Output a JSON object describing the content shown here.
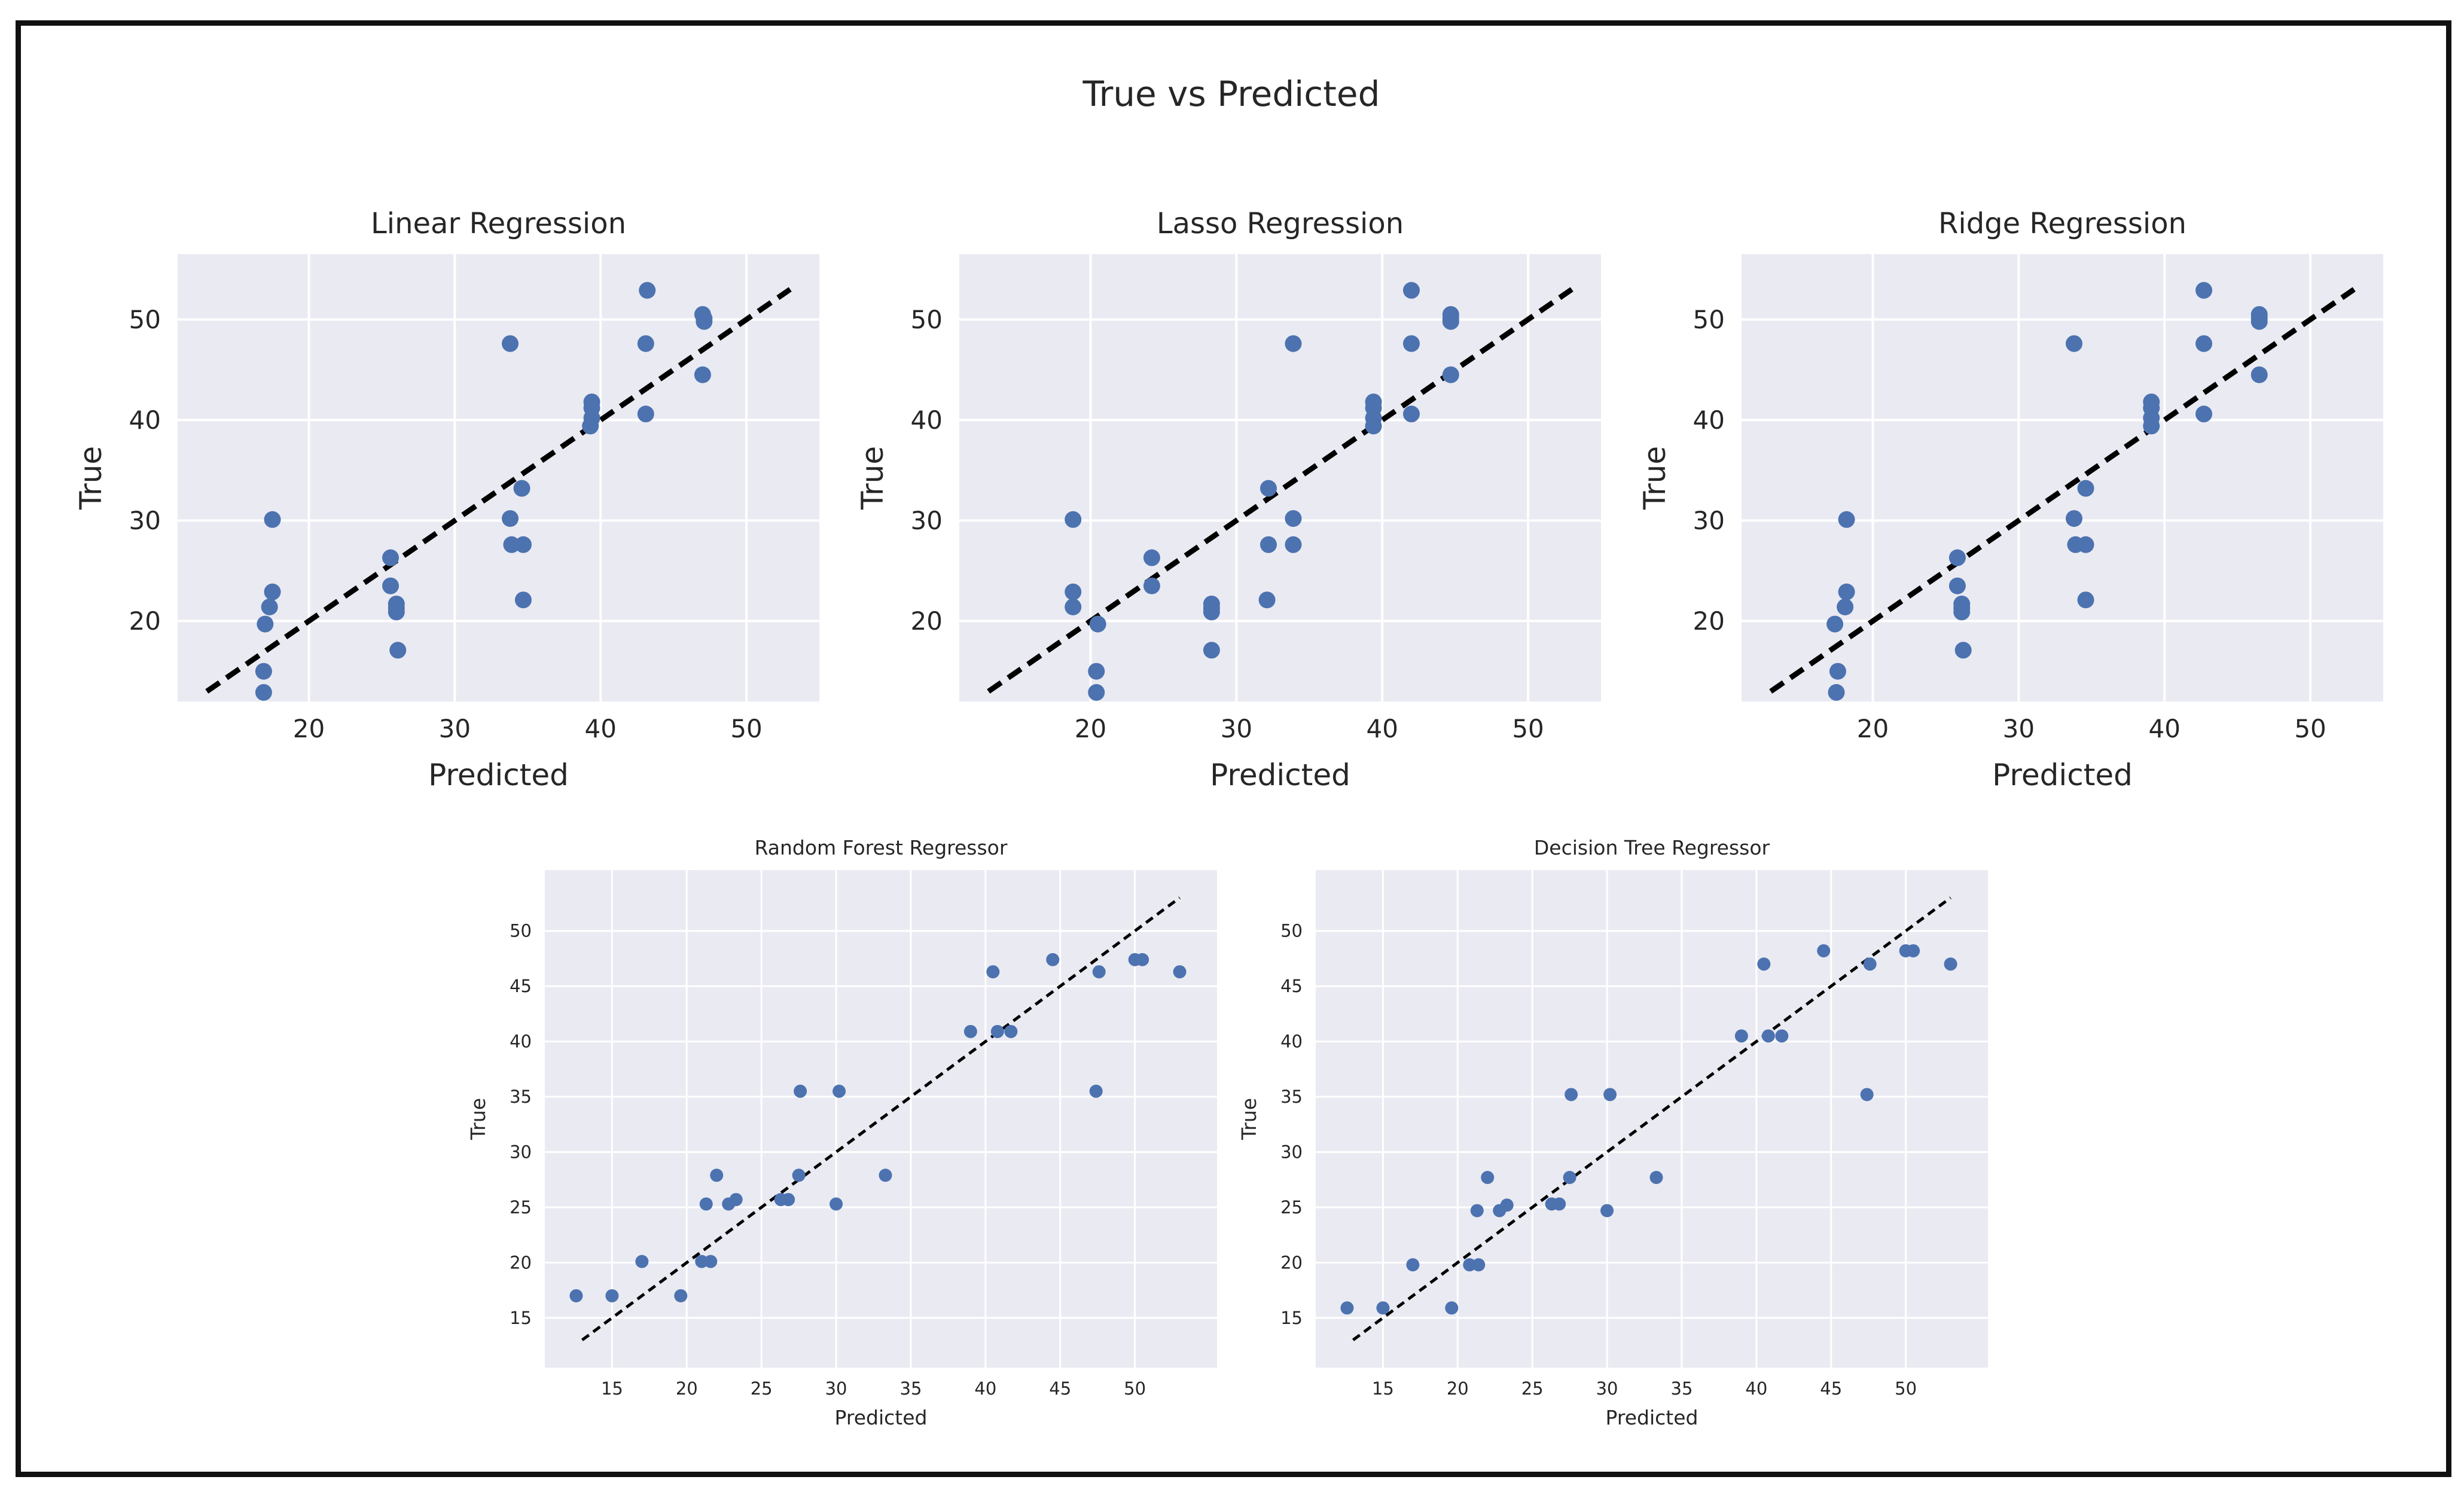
{
  "figure": {
    "suptitle": "True vs Predicted"
  },
  "colors": {
    "panel_bg": "#eaeaf2",
    "grid": "#ffffff",
    "marker": "#4c72b0",
    "diagonal": "#000000",
    "text": "#262626"
  },
  "chart_data": [
    {
      "type": "scatter",
      "title": "Linear Regression",
      "xlabel": "Predicted",
      "ylabel": "True",
      "xlim": [
        11,
        55
      ],
      "ylim": [
        12,
        56.5
      ],
      "xticks": [
        20,
        30,
        40,
        50
      ],
      "yticks": [
        20,
        30,
        40,
        50
      ],
      "diagonal": [
        13,
        53
      ],
      "x": [
        17.5,
        17.5,
        17.3,
        17.0,
        16.9,
        16.9,
        25.6,
        25.6,
        26.0,
        26.0,
        26.0,
        26.1,
        33.8,
        33.8,
        33.9,
        34.7,
        34.6,
        34.7,
        39.4,
        39.4,
        39.4,
        39.3,
        43.2,
        43.1,
        43.1,
        47.0,
        47.1,
        47.1,
        47.0
      ],
      "y": [
        30.1,
        22.9,
        21.4,
        19.7,
        15.0,
        12.9,
        26.3,
        23.5,
        21.7,
        21.3,
        20.9,
        17.1,
        47.6,
        30.2,
        27.6,
        27.6,
        33.2,
        22.1,
        41.8,
        41.2,
        40.2,
        39.4,
        52.9,
        47.6,
        40.6,
        50.5,
        50.1,
        49.8,
        44.5
      ]
    },
    {
      "type": "scatter",
      "title": "Lasso Regression",
      "xlabel": "Predicted",
      "ylabel": "True",
      "xlim": [
        11,
        55
      ],
      "ylim": [
        12,
        56.5
      ],
      "xticks": [
        20,
        30,
        40,
        50
      ],
      "yticks": [
        20,
        30,
        40,
        50
      ],
      "diagonal": [
        13,
        53
      ],
      "x": [
        18.8,
        18.8,
        18.8,
        20.5,
        20.4,
        20.4,
        24.2,
        24.2,
        28.3,
        28.3,
        28.3,
        28.3,
        32.2,
        32.2,
        32.1,
        33.9,
        33.9,
        33.9,
        39.4,
        39.4,
        39.4,
        39.4,
        42.0,
        42.0,
        42.0,
        44.7,
        44.7,
        44.7,
        44.7
      ],
      "y": [
        30.1,
        22.9,
        21.4,
        19.7,
        15.0,
        12.9,
        26.3,
        23.5,
        21.7,
        21.3,
        20.9,
        17.1,
        33.2,
        27.6,
        22.1,
        47.6,
        30.2,
        27.6,
        41.8,
        41.2,
        40.2,
        39.4,
        52.9,
        47.6,
        40.6,
        50.5,
        50.1,
        49.8,
        44.5
      ]
    },
    {
      "type": "scatter",
      "title": "Ridge Regression",
      "xlabel": "Predicted",
      "ylabel": "True",
      "xlim": [
        11,
        55
      ],
      "ylim": [
        12,
        56.5
      ],
      "xticks": [
        20,
        30,
        40,
        50
      ],
      "yticks": [
        20,
        30,
        40,
        50
      ],
      "diagonal": [
        13,
        53
      ],
      "x": [
        18.2,
        18.2,
        18.1,
        17.4,
        17.6,
        17.5,
        25.8,
        25.8,
        26.1,
        26.1,
        26.1,
        26.2,
        33.8,
        33.8,
        33.9,
        34.6,
        34.6,
        34.6,
        39.1,
        39.1,
        39.1,
        39.1,
        42.7,
        42.7,
        42.7,
        46.5,
        46.5,
        46.5,
        46.5
      ],
      "y": [
        30.1,
        22.9,
        21.4,
        19.7,
        15.0,
        12.9,
        26.3,
        23.5,
        21.7,
        21.3,
        20.9,
        17.1,
        47.6,
        30.2,
        27.6,
        27.6,
        33.2,
        22.1,
        41.8,
        41.2,
        40.2,
        39.4,
        52.9,
        47.6,
        40.6,
        50.5,
        50.1,
        49.8,
        44.5
      ]
    },
    {
      "type": "scatter",
      "title": "Random Forest Regressor",
      "xlabel": "Predicted",
      "ylabel": "True",
      "xlim": [
        10.5,
        55.5
      ],
      "ylim": [
        10.5,
        55.5
      ],
      "xticks": [
        15,
        20,
        25,
        30,
        35,
        40,
        45,
        50
      ],
      "yticks": [
        15,
        20,
        25,
        30,
        35,
        40,
        45,
        50
      ],
      "diagonal": [
        13,
        53
      ],
      "x": [
        12.6,
        15.0,
        17.0,
        19.6,
        21.0,
        21.6,
        21.3,
        22.0,
        22.8,
        23.3,
        26.3,
        26.8,
        27.5,
        27.6,
        30.0,
        30.2,
        33.3,
        39.0,
        40.5,
        40.8,
        41.7,
        44.5,
        47.4,
        47.6,
        50.0,
        50.5,
        53.0
      ],
      "y": [
        17.0,
        17.0,
        20.1,
        17.0,
        20.1,
        20.1,
        25.3,
        27.9,
        25.3,
        25.7,
        25.7,
        25.7,
        27.9,
        35.5,
        25.3,
        35.5,
        27.9,
        40.9,
        46.3,
        40.9,
        40.9,
        47.4,
        35.5,
        46.3,
        47.4,
        47.4,
        46.3
      ]
    },
    {
      "type": "scatter",
      "title": "Decision Tree Regressor",
      "xlabel": "Predicted",
      "ylabel": "True",
      "xlim": [
        10.5,
        55.5
      ],
      "ylim": [
        10.5,
        55.5
      ],
      "xticks": [
        15,
        20,
        25,
        30,
        35,
        40,
        45,
        50
      ],
      "yticks": [
        15,
        20,
        25,
        30,
        35,
        40,
        45,
        50
      ],
      "diagonal": [
        13,
        53
      ],
      "x": [
        12.6,
        15.0,
        17.0,
        19.6,
        20.8,
        21.4,
        21.3,
        22.0,
        22.8,
        23.3,
        26.3,
        26.8,
        27.5,
        27.6,
        30.0,
        30.2,
        33.3,
        39.0,
        40.5,
        40.8,
        41.7,
        44.5,
        47.4,
        47.6,
        50.0,
        50.5,
        53.0
      ],
      "y": [
        15.9,
        15.9,
        19.8,
        15.9,
        19.8,
        19.8,
        24.7,
        27.7,
        24.7,
        25.2,
        25.3,
        25.3,
        27.7,
        35.2,
        24.7,
        35.2,
        27.7,
        40.5,
        47.0,
        40.5,
        40.5,
        48.2,
        35.2,
        47.0,
        48.2,
        48.2,
        47.0
      ]
    }
  ]
}
